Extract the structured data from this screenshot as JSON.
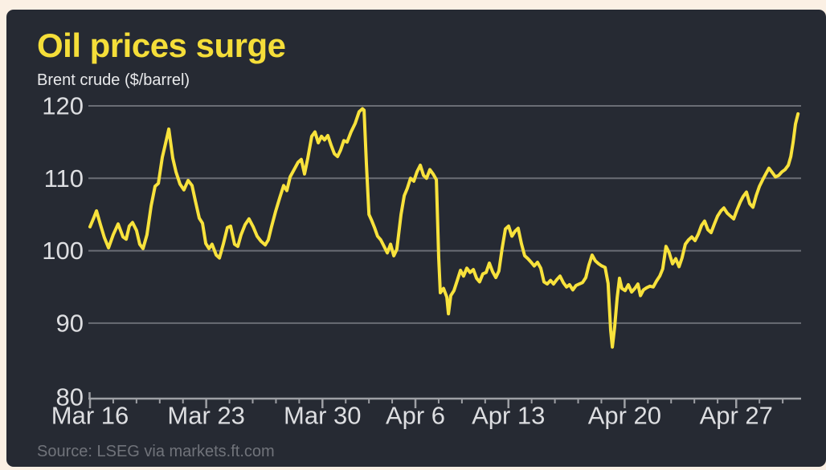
{
  "header": {
    "title": "Oil prices surge",
    "subtitle": "Brent crude ($/barrel)"
  },
  "footer": {
    "source": "Source: LSEG via markets.ft.com"
  },
  "colors": {
    "page_background": "#FBF0E4",
    "card_background": "#262A33",
    "title_yellow": "#F5DE39",
    "line_yellow": "#F8E23C",
    "grid_gray": "#6A6D75",
    "axis_gray": "#9EA0A5",
    "tick_label": "#DDDEE1",
    "subtitle_text": "#E9EAEC",
    "source_text": "#70737A"
  },
  "chart_data": {
    "type": "line",
    "title": "Oil prices surge",
    "subtitle": "Brent crude ($/barrel)",
    "source": "Source: LSEG via markets.ft.com",
    "ylabel": "Brent crude ($/barrel)",
    "ylim": [
      80,
      121
    ],
    "yticks": [
      80,
      90,
      100,
      110,
      120
    ],
    "grid": true,
    "legend": false,
    "x_unit": "trading days since Mar 16",
    "xlim": [
      0,
      30.6
    ],
    "xticks_major": [
      {
        "day": 0,
        "label": "Mar 16"
      },
      {
        "day": 5,
        "label": "Mar 23"
      },
      {
        "day": 10,
        "label": "Mar 30"
      },
      {
        "day": 14,
        "label": "Apr 6"
      },
      {
        "day": 18,
        "label": "Apr 13"
      },
      {
        "day": 23,
        "label": "Apr 20"
      },
      {
        "day": 27.8,
        "label": "Apr 27"
      }
    ],
    "xticks_minor": [
      1,
      2,
      3,
      4,
      6,
      7,
      8,
      9,
      11,
      12,
      13,
      15,
      16,
      17,
      19,
      20,
      21,
      22,
      24,
      25,
      26,
      27,
      28.8,
      29.8
    ],
    "series": [
      {
        "name": "Brent crude ($/barrel)",
        "points": [
          [
            0,
            103.3
          ],
          [
            0.17,
            104.6
          ],
          [
            0.28,
            105.5
          ],
          [
            0.45,
            103.6
          ],
          [
            0.62,
            101.8
          ],
          [
            0.8,
            100.4
          ],
          [
            1.0,
            102.2
          ],
          [
            1.21,
            103.7
          ],
          [
            1.42,
            101.9
          ],
          [
            1.56,
            101.6
          ],
          [
            1.69,
            103.4
          ],
          [
            1.83,
            103.9
          ],
          [
            2.0,
            102.8
          ],
          [
            2.14,
            100.9
          ],
          [
            2.28,
            100.3
          ],
          [
            2.45,
            102.2
          ],
          [
            2.63,
            106.2
          ],
          [
            2.8,
            108.9
          ],
          [
            2.94,
            109.3
          ],
          [
            3.11,
            112.9
          ],
          [
            3.25,
            114.8
          ],
          [
            3.39,
            116.8
          ],
          [
            3.56,
            112.8
          ],
          [
            3.7,
            110.9
          ],
          [
            3.87,
            109.2
          ],
          [
            4.04,
            108.4
          ],
          [
            4.22,
            109.7
          ],
          [
            4.39,
            109.0
          ],
          [
            4.53,
            106.9
          ],
          [
            4.7,
            104.5
          ],
          [
            4.84,
            103.8
          ],
          [
            4.98,
            101.0
          ],
          [
            5.12,
            100.3
          ],
          [
            5.25,
            100.9
          ],
          [
            5.43,
            99.4
          ],
          [
            5.57,
            99.0
          ],
          [
            5.74,
            101.0
          ],
          [
            5.91,
            103.2
          ],
          [
            6.05,
            103.4
          ],
          [
            6.22,
            100.9
          ],
          [
            6.36,
            100.6
          ],
          [
            6.5,
            102.2
          ],
          [
            6.67,
            103.6
          ],
          [
            6.84,
            104.4
          ],
          [
            7.02,
            103.3
          ],
          [
            7.19,
            102.0
          ],
          [
            7.36,
            101.3
          ],
          [
            7.54,
            100.8
          ],
          [
            7.67,
            101.5
          ],
          [
            7.81,
            103.3
          ],
          [
            7.99,
            105.5
          ],
          [
            8.16,
            107.3
          ],
          [
            8.33,
            109.0
          ],
          [
            8.47,
            108.3
          ],
          [
            8.61,
            110.2
          ],
          [
            8.78,
            111.2
          ],
          [
            8.95,
            112.2
          ],
          [
            9.09,
            112.6
          ],
          [
            9.23,
            110.6
          ],
          [
            9.37,
            112.8
          ],
          [
            9.54,
            115.8
          ],
          [
            9.68,
            116.4
          ],
          [
            9.82,
            114.9
          ],
          [
            9.96,
            115.8
          ],
          [
            10.09,
            115.3
          ],
          [
            10.23,
            115.9
          ],
          [
            10.37,
            114.6
          ],
          [
            10.51,
            113.4
          ],
          [
            10.65,
            113.0
          ],
          [
            10.78,
            113.9
          ],
          [
            10.92,
            115.2
          ],
          [
            11.06,
            115.0
          ],
          [
            11.23,
            116.4
          ],
          [
            11.41,
            117.6
          ],
          [
            11.58,
            119.2
          ],
          [
            11.72,
            119.6
          ],
          [
            11.79,
            119.4
          ],
          [
            11.89,
            112.0
          ],
          [
            12.0,
            105.0
          ],
          [
            12.1,
            104.3
          ],
          [
            12.24,
            103.2
          ],
          [
            12.37,
            102.0
          ],
          [
            12.51,
            101.5
          ],
          [
            12.65,
            100.6
          ],
          [
            12.79,
            99.7
          ],
          [
            12.93,
            100.9
          ],
          [
            13.07,
            99.3
          ],
          [
            13.2,
            100.2
          ],
          [
            13.38,
            105.0
          ],
          [
            13.52,
            107.6
          ],
          [
            13.65,
            108.6
          ],
          [
            13.79,
            110.0
          ],
          [
            13.93,
            109.6
          ],
          [
            14.07,
            110.9
          ],
          [
            14.21,
            111.8
          ],
          [
            14.35,
            110.4
          ],
          [
            14.48,
            110.0
          ],
          [
            14.62,
            111.2
          ],
          [
            14.76,
            110.6
          ],
          [
            14.9,
            109.8
          ],
          [
            15.0,
            99.0
          ],
          [
            15.07,
            94.2
          ],
          [
            15.21,
            94.8
          ],
          [
            15.35,
            93.6
          ],
          [
            15.42,
            91.3
          ],
          [
            15.52,
            93.8
          ],
          [
            15.66,
            94.5
          ],
          [
            15.8,
            95.9
          ],
          [
            15.94,
            97.3
          ],
          [
            16.07,
            96.5
          ],
          [
            16.21,
            97.6
          ],
          [
            16.35,
            97.0
          ],
          [
            16.49,
            97.4
          ],
          [
            16.63,
            96.2
          ],
          [
            16.76,
            95.7
          ],
          [
            16.9,
            96.8
          ],
          [
            17.04,
            97.0
          ],
          [
            17.18,
            98.3
          ],
          [
            17.32,
            97.1
          ],
          [
            17.46,
            96.3
          ],
          [
            17.59,
            97.2
          ],
          [
            17.73,
            100.3
          ],
          [
            17.87,
            103.0
          ],
          [
            18.01,
            103.4
          ],
          [
            18.15,
            102.0
          ],
          [
            18.29,
            102.7
          ],
          [
            18.42,
            103.1
          ],
          [
            18.56,
            101.0
          ],
          [
            18.7,
            99.3
          ],
          [
            18.84,
            98.9
          ],
          [
            18.98,
            98.4
          ],
          [
            19.11,
            97.9
          ],
          [
            19.25,
            98.4
          ],
          [
            19.39,
            97.6
          ],
          [
            19.53,
            95.7
          ],
          [
            19.67,
            95.4
          ],
          [
            19.81,
            95.9
          ],
          [
            19.94,
            95.4
          ],
          [
            20.08,
            96.0
          ],
          [
            20.22,
            96.5
          ],
          [
            20.36,
            95.6
          ],
          [
            20.5,
            95.0
          ],
          [
            20.63,
            95.3
          ],
          [
            20.77,
            94.6
          ],
          [
            20.91,
            95.2
          ],
          [
            21.05,
            95.4
          ],
          [
            21.19,
            95.6
          ],
          [
            21.33,
            96.3
          ],
          [
            21.46,
            98.0
          ],
          [
            21.6,
            99.4
          ],
          [
            21.74,
            98.6
          ],
          [
            21.88,
            98.2
          ],
          [
            22.02,
            97.9
          ],
          [
            22.16,
            97.7
          ],
          [
            22.29,
            95.5
          ],
          [
            22.4,
            89.0
          ],
          [
            22.47,
            86.7
          ],
          [
            22.57,
            89.5
          ],
          [
            22.68,
            93.5
          ],
          [
            22.78,
            96.2
          ],
          [
            22.88,
            94.8
          ],
          [
            23.02,
            94.5
          ],
          [
            23.16,
            95.3
          ],
          [
            23.3,
            94.3
          ],
          [
            23.44,
            94.8
          ],
          [
            23.57,
            95.4
          ],
          [
            23.68,
            93.8
          ],
          [
            23.81,
            94.6
          ],
          [
            23.95,
            94.9
          ],
          [
            24.09,
            95.1
          ],
          [
            24.23,
            95.0
          ],
          [
            24.37,
            95.8
          ],
          [
            24.51,
            96.5
          ],
          [
            24.64,
            97.5
          ],
          [
            24.78,
            100.6
          ],
          [
            24.92,
            99.7
          ],
          [
            25.06,
            98.2
          ],
          [
            25.2,
            98.9
          ],
          [
            25.34,
            97.8
          ],
          [
            25.47,
            99.0
          ],
          [
            25.61,
            100.9
          ],
          [
            25.75,
            101.5
          ],
          [
            25.89,
            101.9
          ],
          [
            26.03,
            101.4
          ],
          [
            26.17,
            102.3
          ],
          [
            26.31,
            103.5
          ],
          [
            26.44,
            104.1
          ],
          [
            26.58,
            102.9
          ],
          [
            26.72,
            102.5
          ],
          [
            26.86,
            103.7
          ],
          [
            27.0,
            104.8
          ],
          [
            27.14,
            105.5
          ],
          [
            27.27,
            105.9
          ],
          [
            27.41,
            105.2
          ],
          [
            27.55,
            104.8
          ],
          [
            27.69,
            104.4
          ],
          [
            27.83,
            105.6
          ],
          [
            27.97,
            106.7
          ],
          [
            28.1,
            107.5
          ],
          [
            28.24,
            108.1
          ],
          [
            28.38,
            106.5
          ],
          [
            28.52,
            106.0
          ],
          [
            28.66,
            107.6
          ],
          [
            28.8,
            108.9
          ],
          [
            28.94,
            109.8
          ],
          [
            29.07,
            110.6
          ],
          [
            29.21,
            111.4
          ],
          [
            29.35,
            110.8
          ],
          [
            29.49,
            110.2
          ],
          [
            29.63,
            110.4
          ],
          [
            29.77,
            110.9
          ],
          [
            29.9,
            111.2
          ],
          [
            30.04,
            111.8
          ],
          [
            30.15,
            113.0
          ],
          [
            30.25,
            115.0
          ],
          [
            30.35,
            117.5
          ],
          [
            30.46,
            118.9
          ]
        ]
      }
    ]
  }
}
